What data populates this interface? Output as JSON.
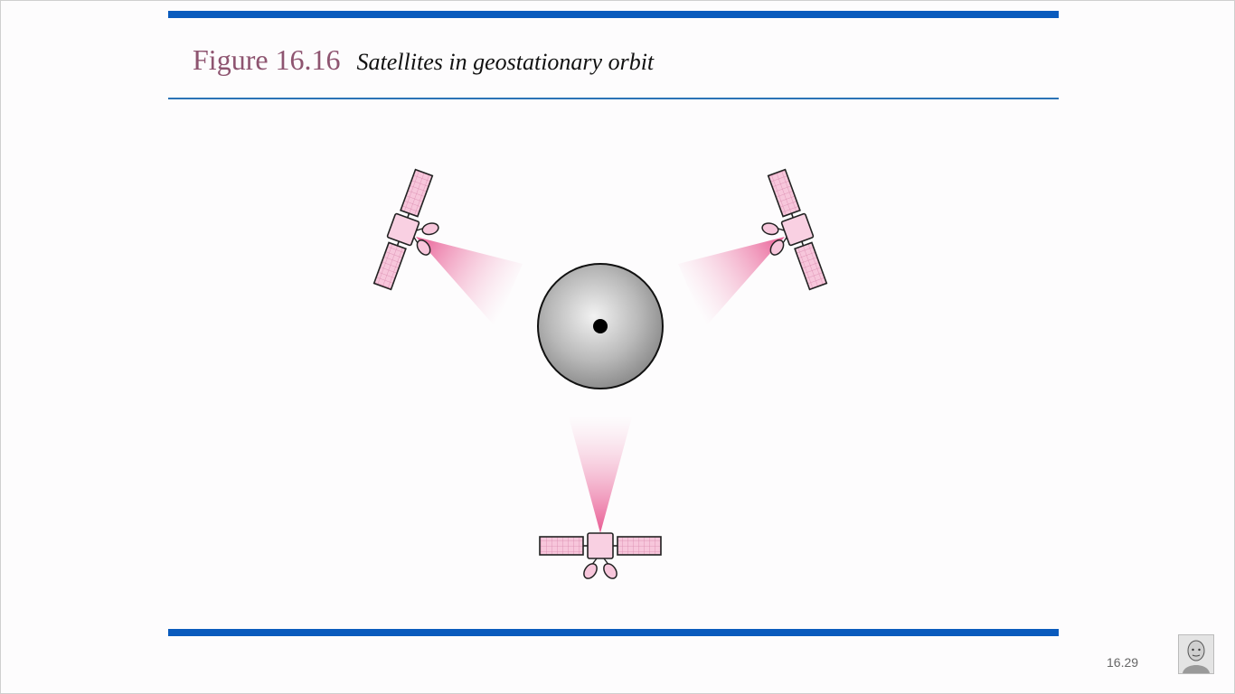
{
  "slide": {
    "figure_label": "Figure 16.16",
    "caption": "Satellites in geostationary orbit",
    "page_number": "16.29"
  },
  "colors": {
    "accent_bar": "#0a5bbd",
    "title_label": "#8e5470",
    "satellite_fill": "#f7c6db",
    "beam": "#e8558f",
    "earth": "#9d9d9d"
  },
  "icons": [
    "satellite-icon",
    "earth-globe",
    "presenter-avatar"
  ]
}
